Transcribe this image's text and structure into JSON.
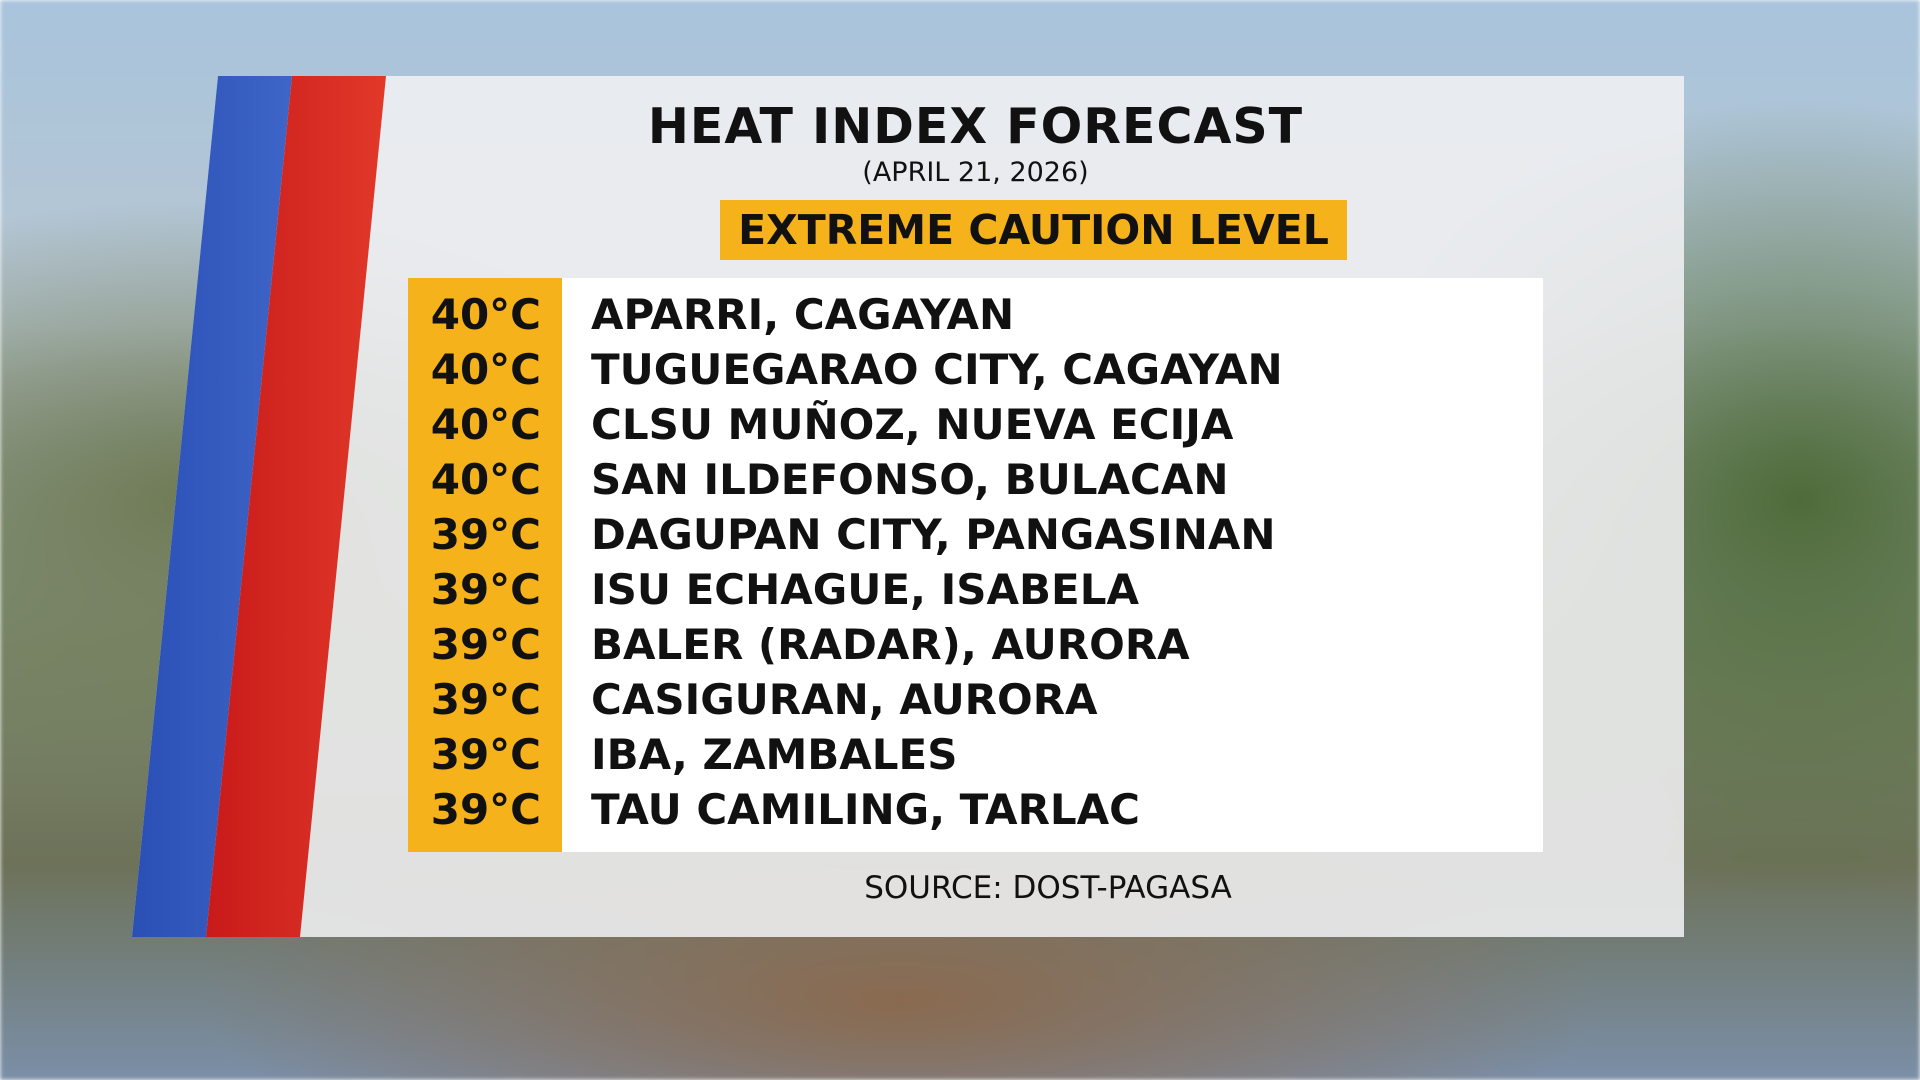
{
  "header": {
    "title": "HEAT INDEX FORECAST",
    "date": "(APRIL 21, 2026)",
    "level": "EXTREME CAUTION LEVEL"
  },
  "table": {
    "rows": [
      [
        "40°C",
        "APARRI, CAGAYAN"
      ],
      [
        "40°C",
        "TUGUEGARAO CITY, CAGAYAN"
      ],
      [
        "40°C",
        "CLSU MUÑOZ, NUEVA ECIJA"
      ],
      [
        "40°C",
        "SAN ILDEFONSO, BULACAN"
      ],
      [
        "39°C",
        "DAGUPAN CITY, PANGASINAN"
      ],
      [
        "39°C",
        "ISU ECHAGUE, ISABELA"
      ],
      [
        "39°C",
        "BALER (RADAR), AURORA"
      ],
      [
        "39°C",
        "CASIGURAN, AURORA"
      ],
      [
        "39°C",
        "IBA, ZAMBALES"
      ],
      [
        "39°C",
        "TAU CAMILING, TARLAC"
      ]
    ]
  },
  "footer": {
    "source": "SOURCE: DOST-PAGASA"
  }
}
